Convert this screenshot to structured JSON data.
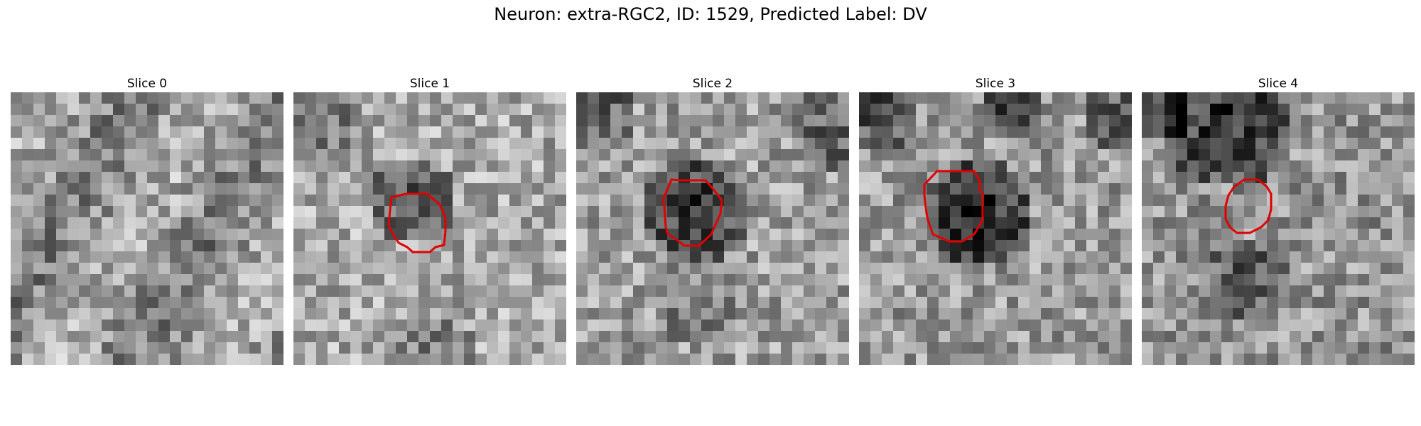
{
  "title": "Neuron: extra-RGC2, ID: 1529, Predicted Label: DV",
  "contour_color": "#e00000",
  "colormap": "gray",
  "panels": [
    {
      "label": "Slice 0",
      "has_contour": false
    },
    {
      "label": "Slice 1",
      "has_contour": true
    },
    {
      "label": "Slice 2",
      "has_contour": true
    },
    {
      "label": "Slice 3",
      "has_contour": true
    },
    {
      "label": "Slice 4",
      "has_contour": true
    }
  ]
}
